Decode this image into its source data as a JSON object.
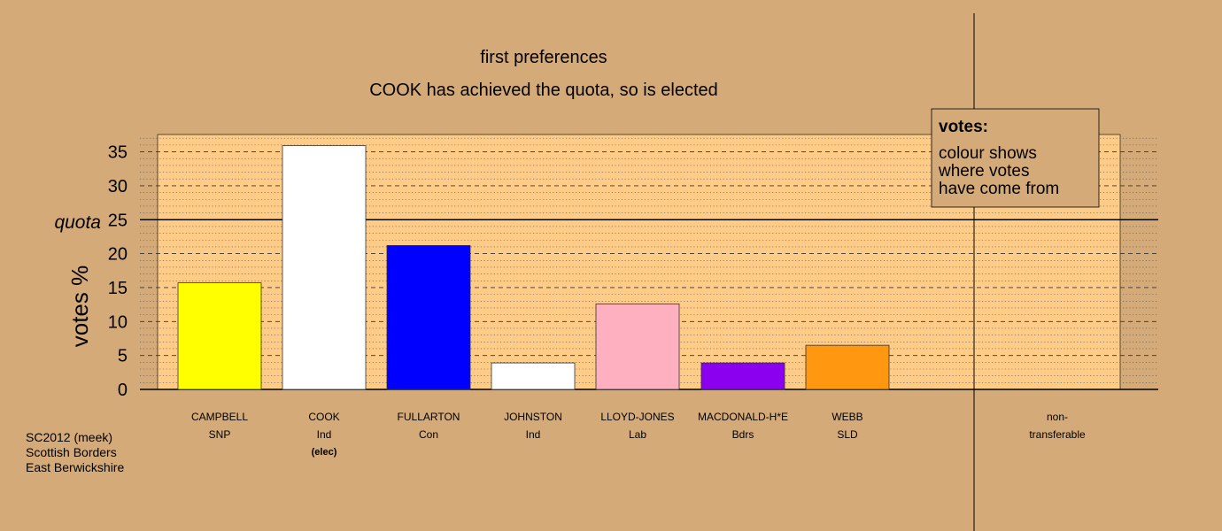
{
  "titles": {
    "line1": "first preferences",
    "line2": "COOK has achieved the quota, so is elected"
  },
  "legend": {
    "title": "votes:",
    "line1": "colour shows",
    "line2": "where votes",
    "line3": "have come from"
  },
  "footer": {
    "line1": "SC2012 (meek)",
    "line2": "Scottish Borders",
    "line3": "East Berwickshire"
  },
  "quota_label": "quota",
  "chart_data": {
    "type": "bar",
    "ylabel": "votes %",
    "ylim": [
      0,
      37.5
    ],
    "yticks": [
      0,
      5,
      10,
      15,
      20,
      25,
      30,
      35
    ],
    "quota": 25,
    "grid": "dashed major, dotted minor",
    "categories": [
      "CAMPBELL",
      "COOK",
      "FULLARTON",
      "JOHNSTON",
      "LLOYD-JONES",
      "MACDONALD-H*E",
      "WEBB",
      "non-"
    ],
    "parties": [
      "SNP",
      "Ind",
      "Con",
      "Ind",
      "Lab",
      "Bdrs",
      "SLD",
      "transferable"
    ],
    "status": [
      "",
      "(elec)",
      "",
      "",
      "",
      "",
      "",
      ""
    ],
    "values": [
      15.7,
      35.9,
      21.2,
      3.9,
      12.6,
      3.9,
      6.5,
      0
    ],
    "colors": [
      "#ffff00",
      "#ffffff",
      "#0000ff",
      "#ffffff",
      "#ffb0c0",
      "#8b00ee",
      "#ff9810",
      "#ffffff"
    ]
  }
}
